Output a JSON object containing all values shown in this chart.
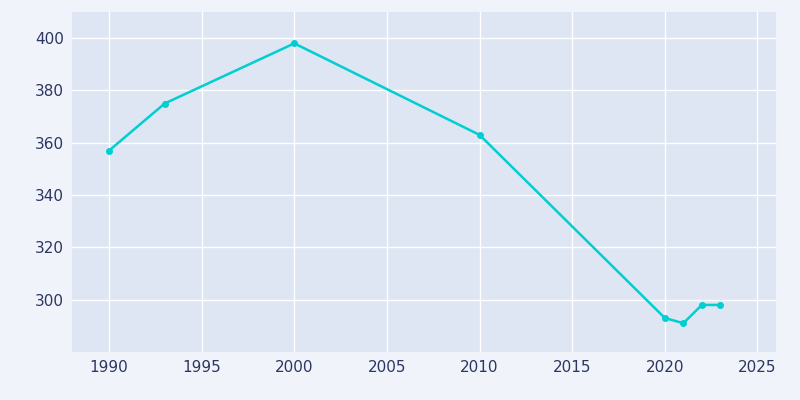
{
  "years": [
    1990,
    1993,
    2000,
    2010,
    2020,
    2021,
    2022,
    2023
  ],
  "population": [
    357,
    375,
    398,
    363,
    293,
    291,
    298,
    298
  ],
  "line_color": "#00CED1",
  "marker_color": "#00CED1",
  "fig_bg_color": "#f0f4fa",
  "plot_bg_color": "#dde6f2",
  "xlim": [
    1988,
    2026
  ],
  "ylim": [
    280,
    410
  ],
  "xticks": [
    1990,
    1995,
    2000,
    2005,
    2010,
    2015,
    2020,
    2025
  ],
  "yticks": [
    300,
    320,
    340,
    360,
    380,
    400
  ],
  "grid_color": "#ffffff",
  "tick_color": "#2d3561",
  "linewidth": 1.8,
  "markersize": 4,
  "tick_fontsize": 11
}
